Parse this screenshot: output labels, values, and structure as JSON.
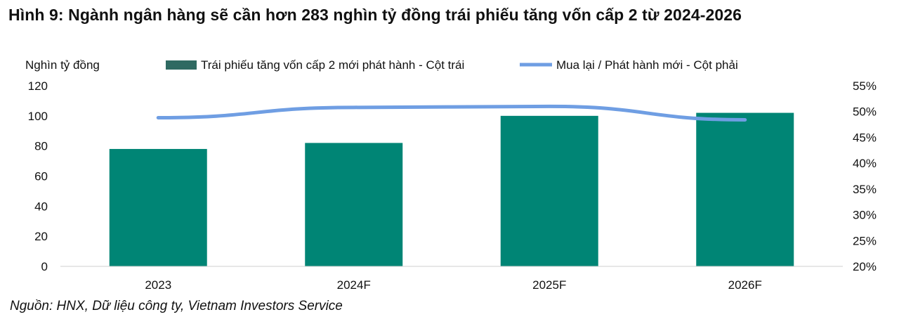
{
  "title": "Hình 9: Ngành ngân hàng sẽ cần hơn 283 nghìn tỷ đồng trái phiếu tăng vốn cấp 2 từ 2024-2026",
  "source": "Nguồn: HNX, Dữ liệu công ty, Vietnam Investors Service",
  "colors": {
    "bar": "#008575",
    "bar_top": "#2f6a62",
    "line": "#6f9ee3"
  },
  "chart_data": {
    "type": "bar",
    "categories": [
      "2023",
      "2024F",
      "2025F",
      "2026F"
    ],
    "y_left_unit_label": "Nghìn tỷ đồng",
    "y_left_range": [
      0,
      120
    ],
    "y_left_ticks": [
      "0",
      "20",
      "40",
      "60",
      "80",
      "100",
      "120"
    ],
    "y_right_range": [
      20,
      55
    ],
    "y_right_ticks": [
      "20%",
      "25%",
      "30%",
      "35%",
      "40%",
      "45%",
      "50%",
      "55%"
    ],
    "legend_position": "top",
    "series": [
      {
        "name": "Trái phiếu tăng vốn cấp 2 mới phát hành - Cột trái",
        "type": "bar",
        "axis": "left",
        "values": [
          78,
          82,
          100,
          102
        ]
      },
      {
        "name": "Mua lại / Phát hành mới - Cột phải",
        "type": "line",
        "axis": "right",
        "values": [
          48.8,
          50.8,
          51.0,
          48.4
        ]
      }
    ],
    "grid": false
  }
}
